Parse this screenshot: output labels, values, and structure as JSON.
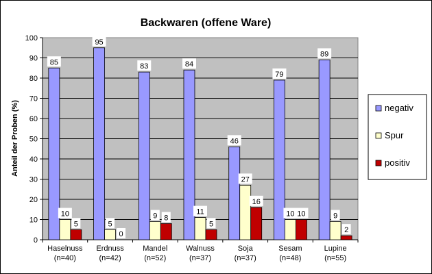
{
  "chart_data": {
    "type": "bar",
    "title": "Backwaren (offene Ware)",
    "ylabel": "Anteil  der Proben (%)",
    "xlabel": "",
    "ylim": [
      0,
      100
    ],
    "yticks": [
      0,
      10,
      20,
      30,
      40,
      50,
      60,
      70,
      80,
      90,
      100
    ],
    "grid": true,
    "legend_position": "right",
    "categories": [
      [
        "Haselnuss",
        "(n=40)"
      ],
      [
        "Erdnuss",
        "(n=42)"
      ],
      [
        "Mandel",
        "(n=52)"
      ],
      [
        "Walnuss",
        "(n=37)"
      ],
      [
        "Soja",
        "(n=37)"
      ],
      [
        "Sesam",
        "(n=48)"
      ],
      [
        "Lupine",
        "(n=55)"
      ]
    ],
    "series": [
      {
        "name": "negativ",
        "color": "#9999FF",
        "values": [
          85,
          95,
          83,
          84,
          46,
          79,
          89
        ]
      },
      {
        "name": "Spur",
        "color": "#FFFFCC",
        "values": [
          10,
          5,
          9,
          11,
          27,
          10,
          9
        ]
      },
      {
        "name": "positiv",
        "color": "#C00000",
        "values": [
          5,
          0,
          8,
          5,
          16,
          10,
          2
        ]
      }
    ],
    "colors": {
      "plot_background": "#C0C0C0",
      "frame": "#000000",
      "label_box": "#FFFFFF"
    }
  }
}
